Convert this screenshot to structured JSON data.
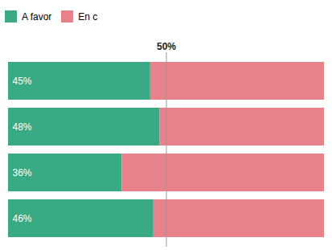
{
  "chart_data": {
    "type": "bar",
    "orientation": "horizontal",
    "stacked": true,
    "categories": [
      null,
      null,
      null,
      null
    ],
    "series": [
      {
        "name": "A favor",
        "color": "#3aaa85",
        "values": [
          45,
          48,
          36,
          46
        ],
        "value_labels": [
          "45%",
          "48%",
          "36%",
          "46%"
        ]
      },
      {
        "name": "En c",
        "color": "#e8828a",
        "values": [
          55,
          52,
          64,
          54
        ]
      }
    ],
    "xlim": [
      0,
      100
    ],
    "annotations": [
      {
        "text": "50%",
        "x": 50
      }
    ],
    "data_labels": true,
    "tick_labels": false,
    "grid": false
  }
}
